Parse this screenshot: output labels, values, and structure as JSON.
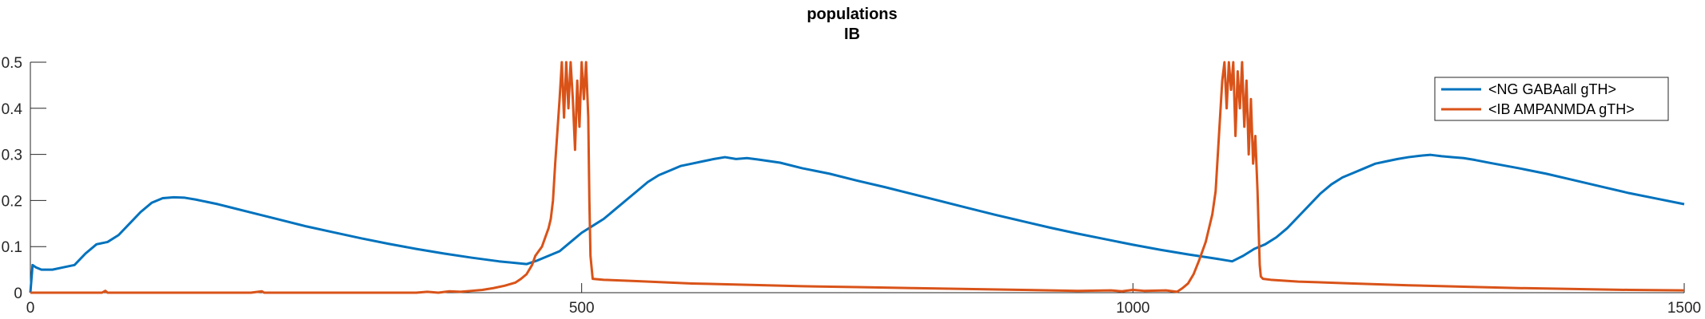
{
  "chart_data": {
    "type": "line",
    "title": "populations",
    "subtitle": "IB",
    "xlabel": "",
    "ylabel": "",
    "xlim": [
      0,
      1500
    ],
    "ylim": [
      0,
      0.5
    ],
    "xticks": [
      0,
      500,
      1000,
      1500
    ],
    "yticks": [
      0,
      0.1,
      0.2,
      0.3,
      0.4,
      0.5
    ],
    "xtick_labels": [
      "0",
      "500",
      "1000",
      "1500"
    ],
    "ytick_labels": [
      "0",
      "0.1",
      "0.2",
      "0.3",
      "0.4",
      "0.5"
    ],
    "grid": false,
    "legend_position": "top-right",
    "series": [
      {
        "name": "<NG GABAall gTH>",
        "color": "#0072BD",
        "x": [
          0,
          2,
          5,
          10,
          20,
          30,
          40,
          50,
          60,
          70,
          80,
          90,
          100,
          110,
          120,
          130,
          140,
          150,
          160,
          170,
          180,
          200,
          225,
          250,
          275,
          300,
          325,
          350,
          375,
          400,
          425,
          450,
          460,
          470,
          480,
          490,
          500,
          510,
          520,
          530,
          540,
          550,
          560,
          570,
          580,
          590,
          600,
          610,
          620,
          630,
          640,
          650,
          660,
          680,
          700,
          725,
          750,
          775,
          800,
          825,
          850,
          875,
          900,
          925,
          950,
          975,
          1000,
          1025,
          1050,
          1075,
          1090,
          1100,
          1110,
          1120,
          1130,
          1140,
          1150,
          1160,
          1170,
          1180,
          1190,
          1200,
          1210,
          1220,
          1230,
          1240,
          1250,
          1260,
          1270,
          1280,
          1290,
          1300,
          1310,
          1325,
          1350,
          1375,
          1400,
          1425,
          1450,
          1475,
          1500
        ],
        "y": [
          0,
          0.06,
          0.055,
          0.05,
          0.05,
          0.055,
          0.06,
          0.085,
          0.105,
          0.11,
          0.125,
          0.15,
          0.175,
          0.195,
          0.205,
          0.207,
          0.206,
          0.202,
          0.197,
          0.192,
          0.186,
          0.174,
          0.159,
          0.144,
          0.131,
          0.118,
          0.106,
          0.095,
          0.085,
          0.076,
          0.068,
          0.062,
          0.07,
          0.08,
          0.09,
          0.11,
          0.13,
          0.145,
          0.16,
          0.18,
          0.2,
          0.22,
          0.24,
          0.255,
          0.265,
          0.275,
          0.28,
          0.285,
          0.29,
          0.294,
          0.29,
          0.292,
          0.289,
          0.282,
          0.27,
          0.258,
          0.243,
          0.229,
          0.214,
          0.199,
          0.184,
          0.169,
          0.155,
          0.141,
          0.128,
          0.116,
          0.104,
          0.093,
          0.083,
          0.074,
          0.068,
          0.08,
          0.095,
          0.105,
          0.12,
          0.14,
          0.165,
          0.19,
          0.215,
          0.235,
          0.25,
          0.26,
          0.27,
          0.28,
          0.285,
          0.29,
          0.294,
          0.297,
          0.299,
          0.296,
          0.294,
          0.292,
          0.288,
          0.281,
          0.27,
          0.258,
          0.244,
          0.23,
          0.216,
          0.204,
          0.192
        ]
      },
      {
        "name": "<IB AMPANMDA gTH>",
        "color": "#D95319",
        "x": [
          0,
          50,
          65,
          68,
          70,
          100,
          200,
          210,
          212,
          300,
          350,
          360,
          370,
          380,
          390,
          400,
          410,
          420,
          430,
          440,
          445,
          450,
          455,
          458,
          461,
          464,
          467,
          470,
          472,
          474,
          476,
          478,
          480,
          482,
          484,
          486,
          488,
          490,
          492,
          494,
          496,
          498,
          500,
          502,
          504,
          506,
          507,
          508,
          510,
          520,
          550,
          600,
          650,
          700,
          750,
          800,
          850,
          900,
          950,
          980,
          990,
          1000,
          1010,
          1030,
          1040,
          1045,
          1050,
          1055,
          1060,
          1063,
          1066,
          1069,
          1072,
          1075,
          1077,
          1079,
          1081,
          1083,
          1085,
          1087,
          1089,
          1091,
          1093,
          1095,
          1097,
          1099,
          1101,
          1103,
          1105,
          1107,
          1109,
          1111,
          1113,
          1114,
          1115,
          1116,
          1118,
          1125,
          1150,
          1200,
          1250,
          1300,
          1350,
          1400,
          1450,
          1500
        ],
        "y": [
          0,
          0,
          0,
          0.004,
          0,
          0,
          0,
          0.003,
          0,
          0,
          0,
          0.002,
          0,
          0.003,
          0.002,
          0.004,
          0.006,
          0.01,
          0.015,
          0.022,
          0.03,
          0.04,
          0.06,
          0.08,
          0.09,
          0.1,
          0.12,
          0.14,
          0.16,
          0.2,
          0.28,
          0.35,
          0.42,
          0.5,
          0.38,
          0.5,
          0.4,
          0.5,
          0.42,
          0.31,
          0.46,
          0.36,
          0.5,
          0.42,
          0.5,
          0.38,
          0.2,
          0.08,
          0.03,
          0.028,
          0.025,
          0.02,
          0.017,
          0.014,
          0.012,
          0.01,
          0.008,
          0.006,
          0.004,
          0.005,
          0.003,
          0.006,
          0.004,
          0.005,
          0.002,
          0.01,
          0.02,
          0.04,
          0.07,
          0.09,
          0.11,
          0.14,
          0.17,
          0.22,
          0.3,
          0.38,
          0.46,
          0.5,
          0.4,
          0.5,
          0.44,
          0.5,
          0.34,
          0.48,
          0.4,
          0.5,
          0.36,
          0.46,
          0.3,
          0.42,
          0.28,
          0.34,
          0.22,
          0.14,
          0.06,
          0.035,
          0.03,
          0.028,
          0.024,
          0.02,
          0.016,
          0.013,
          0.01,
          0.008,
          0.006,
          0.005
        ]
      }
    ]
  }
}
